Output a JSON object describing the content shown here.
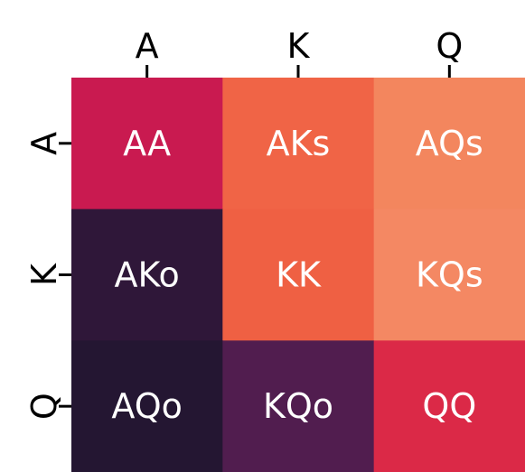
{
  "chart_data": {
    "type": "heatmap",
    "x_categories": [
      "A",
      "K",
      "Q"
    ],
    "y_categories": [
      "A",
      "K",
      "Q"
    ],
    "x_tick_position": "top",
    "y_tick_rotation": "vertical",
    "grid": false,
    "colorbar": false,
    "cells": [
      [
        {
          "label": "AA",
          "color": "#C91A50"
        },
        {
          "label": "AKs",
          "color": "#F06446"
        },
        {
          "label": "AQs",
          "color": "#F3865E"
        }
      ],
      [
        {
          "label": "AKo",
          "color": "#2F1739"
        },
        {
          "label": "KK",
          "color": "#EF6043"
        },
        {
          "label": "KQs",
          "color": "#F48863"
        }
      ],
      [
        {
          "label": "AQo",
          "color": "#241632"
        },
        {
          "label": "KQo",
          "color": "#511D4F"
        },
        {
          "label": "QQ",
          "color": "#DB2947"
        }
      ]
    ]
  }
}
